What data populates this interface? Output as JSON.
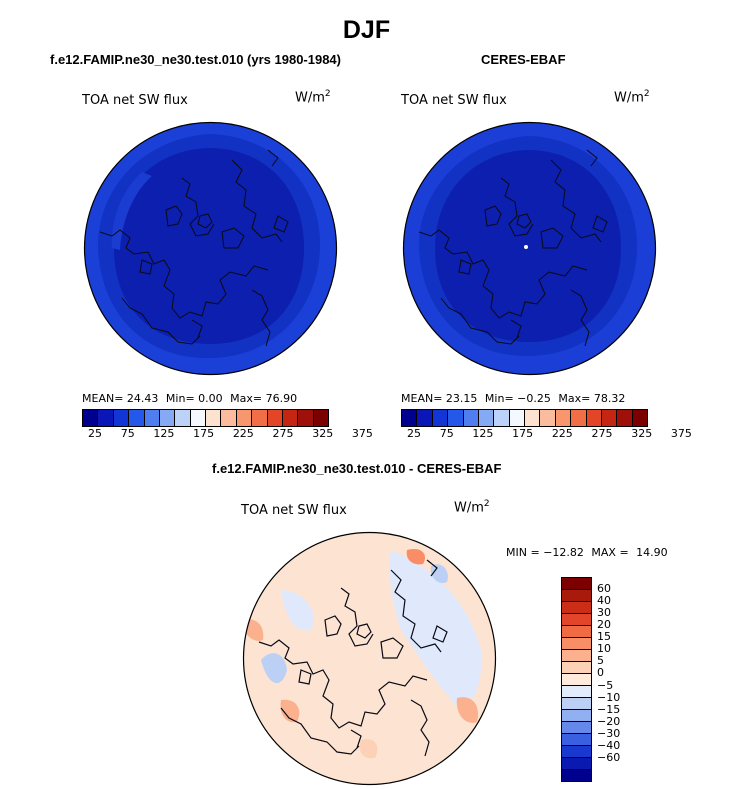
{
  "season": "DJF",
  "variable": "TOA net SW flux",
  "units_base": "W/m",
  "units_exp": "2",
  "chart_data": [
    {
      "type": "heatmap",
      "projection": "north-polar-stereographic",
      "title": "f.e12.FAMIP.ne30_ne30.test.010 (yrs 1980-1984)",
      "subtitle": "TOA net SW flux",
      "units": "W/m2",
      "stats": {
        "mean": "24.43",
        "min": "0.00",
        "max": "76.90"
      },
      "stats_labels": {
        "mean": "MEAN=",
        "min": "Min=",
        "max": "Max="
      },
      "colorbar_labels": [
        "25",
        "75",
        "125",
        "175",
        "225",
        "275",
        "325",
        "375"
      ],
      "colorbar_colors": [
        "#00008f",
        "#0a16b5",
        "#1236d6",
        "#2358e8",
        "#4f7ef0",
        "#86a9f4",
        "#bcd2f8",
        "#f5f9ff",
        "#fde2d0",
        "#fbbc9e",
        "#f8966e",
        "#f26e46",
        "#e24626",
        "#c52614",
        "#a0100a",
        "#7c0000"
      ]
    },
    {
      "type": "heatmap",
      "projection": "north-polar-stereographic",
      "title": "CERES-EBAF",
      "subtitle": "TOA net SW flux",
      "units": "W/m2",
      "stats": {
        "mean": "23.15",
        "min": "−0.25",
        "max": "78.32"
      },
      "stats_labels": {
        "mean": "MEAN=",
        "min": "Min=",
        "max": "Max="
      },
      "colorbar_labels": [
        "25",
        "75",
        "125",
        "175",
        "225",
        "275",
        "325",
        "375"
      ],
      "colorbar_colors": [
        "#00008f",
        "#0a16b5",
        "#1236d6",
        "#2358e8",
        "#4f7ef0",
        "#86a9f4",
        "#bcd2f8",
        "#f5f9ff",
        "#fde2d0",
        "#fbbc9e",
        "#f8966e",
        "#f26e46",
        "#e24626",
        "#c52614",
        "#a0100a",
        "#7c0000"
      ]
    },
    {
      "type": "heatmap",
      "projection": "north-polar-stereographic",
      "title": "f.e12.FAMIP.ne30_ne30.test.010 - CERES-EBAF",
      "subtitle": "TOA net SW flux",
      "units": "W/m2",
      "stats": {
        "min": "−12.82",
        "max": "14.90"
      },
      "stats_labels": {
        "min": "MIN =",
        "max": "MAX ="
      },
      "colorbar_labels": [
        "60",
        "40",
        "30",
        "20",
        "15",
        "10",
        "5",
        "0",
        "−5",
        "−10",
        "−15",
        "−20",
        "−30",
        "−40",
        "−60"
      ],
      "colorbar_colors": [
        "#7c0000",
        "#a81a0c",
        "#cc2d17",
        "#e2452a",
        "#f06a44",
        "#f88d66",
        "#fbb08e",
        "#fdd1b6",
        "#ffeadc",
        "#e2ecfa",
        "#bcd0f6",
        "#91b0f1",
        "#6489ea",
        "#3a5fe0",
        "#1838cf",
        "#0a1ab0",
        "#00008f"
      ]
    }
  ]
}
